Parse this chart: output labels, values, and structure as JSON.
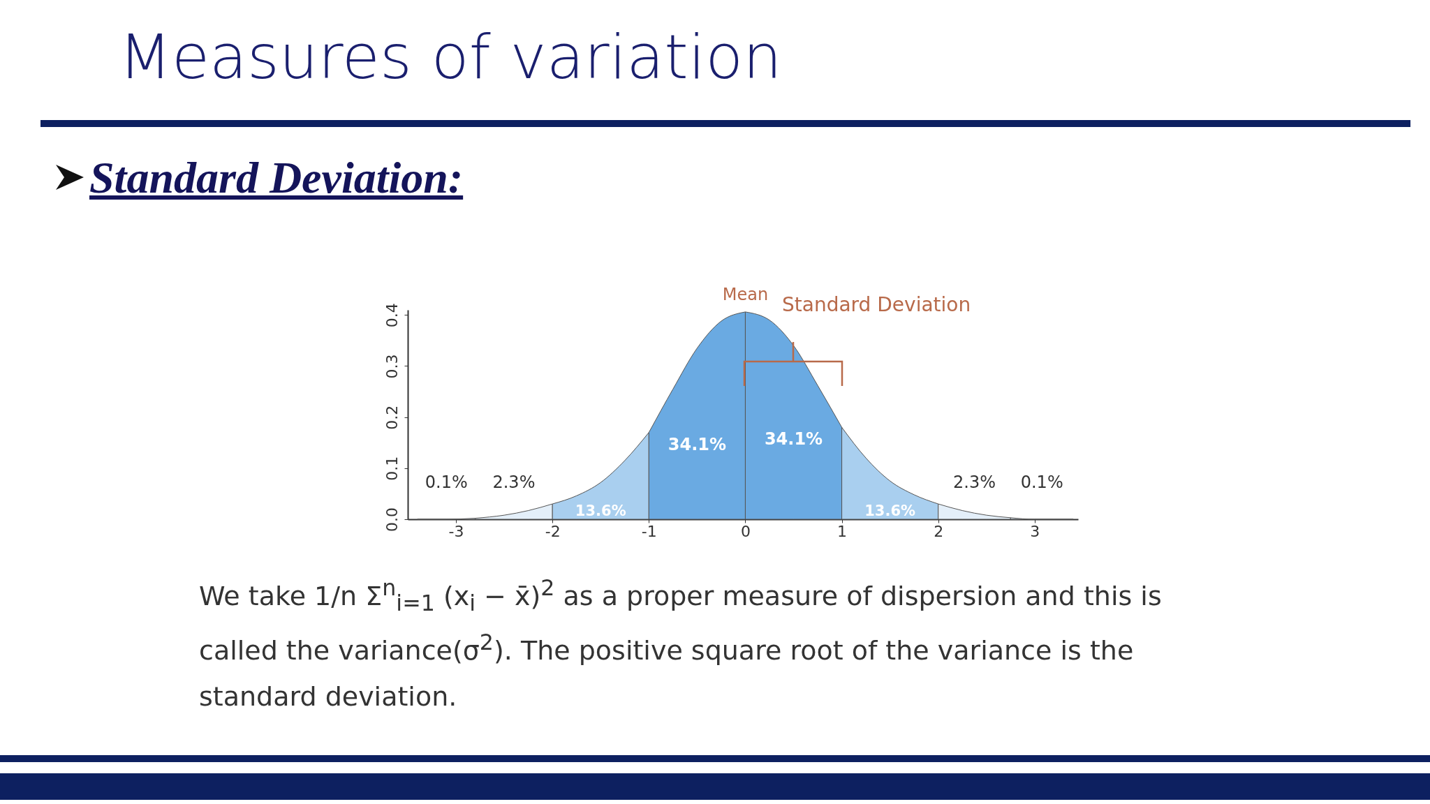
{
  "chart_data": {
    "type": "area",
    "title": "Measures of variation",
    "subtitle": "Standard Deviation:",
    "xlim": [
      -3.5,
      3.45
    ],
    "ylim": [
      0,
      0.41
    ],
    "xticks": [
      -3,
      -2,
      -1,
      0,
      1,
      2,
      3
    ],
    "yticks": [
      {
        "value": 0,
        "label": "0.0"
      },
      {
        "value": 0.1,
        "label": "0.1"
      },
      {
        "value": 0.2,
        "label": "0.2"
      },
      {
        "value": 0.3,
        "label": "0.3"
      },
      {
        "value": 0.4,
        "label": "0.4"
      }
    ],
    "grid": false,
    "series": [
      {
        "name": "0.1%",
        "color": "#e4eff9",
        "x": [
          -3.4,
          -3.1,
          -2.8
        ],
        "values": [
          0,
          0,
          0.002
        ]
      },
      {
        "name": "2.3%",
        "color": "#e4eff9",
        "x": [
          -2.8,
          -2.5,
          -2.25,
          -2
        ],
        "values": [
          0.002,
          0.008,
          0.017,
          0.03
        ]
      },
      {
        "name": "13.6%",
        "color": "#a9cfef",
        "x": [
          -2,
          -1.75,
          -1.5,
          -1.25,
          -1
        ],
        "values": [
          0.03,
          0.046,
          0.072,
          0.115,
          0.17
        ]
      },
      {
        "name": "34.1%",
        "color": "#6aaae2",
        "x": [
          -1,
          -0.75,
          -0.5,
          -0.25,
          0
        ],
        "values": [
          0.17,
          0.255,
          0.335,
          0.388,
          0.406
        ]
      },
      {
        "name": "34.1%",
        "color": "#6aaae2",
        "x": [
          0,
          0.25,
          0.5,
          0.75,
          1
        ],
        "values": [
          0.406,
          0.39,
          0.34,
          0.262,
          0.18
        ]
      },
      {
        "name": "13.6%",
        "color": "#a9cfef",
        "x": [
          1,
          1.25,
          1.5,
          1.75,
          2
        ],
        "values": [
          0.18,
          0.12,
          0.075,
          0.048,
          0.03
        ]
      },
      {
        "name": "2.3%",
        "color": "#e4eff9",
        "x": [
          2,
          2.25,
          2.5,
          2.75
        ],
        "values": [
          0.03,
          0.017,
          0.008,
          0.003
        ]
      },
      {
        "name": "0.1%",
        "color": "#e4eff9",
        "x": [
          2.75,
          3,
          3.2,
          3.4
        ],
        "values": [
          0.003,
          0,
          0,
          0
        ]
      }
    ],
    "annotations": [
      {
        "text": "Mean",
        "x": 0,
        "y": 0.406
      },
      "Standard Deviation",
      "We take 1/n Σ$^{n}$$_{i=1}$ (x$_{i}$ − x̄)$^{2}$ as a proper measure of dispersion and this is called the variance(σ$^{2}$). The positive square root of the variance is the standard deviation."
    ]
  }
}
